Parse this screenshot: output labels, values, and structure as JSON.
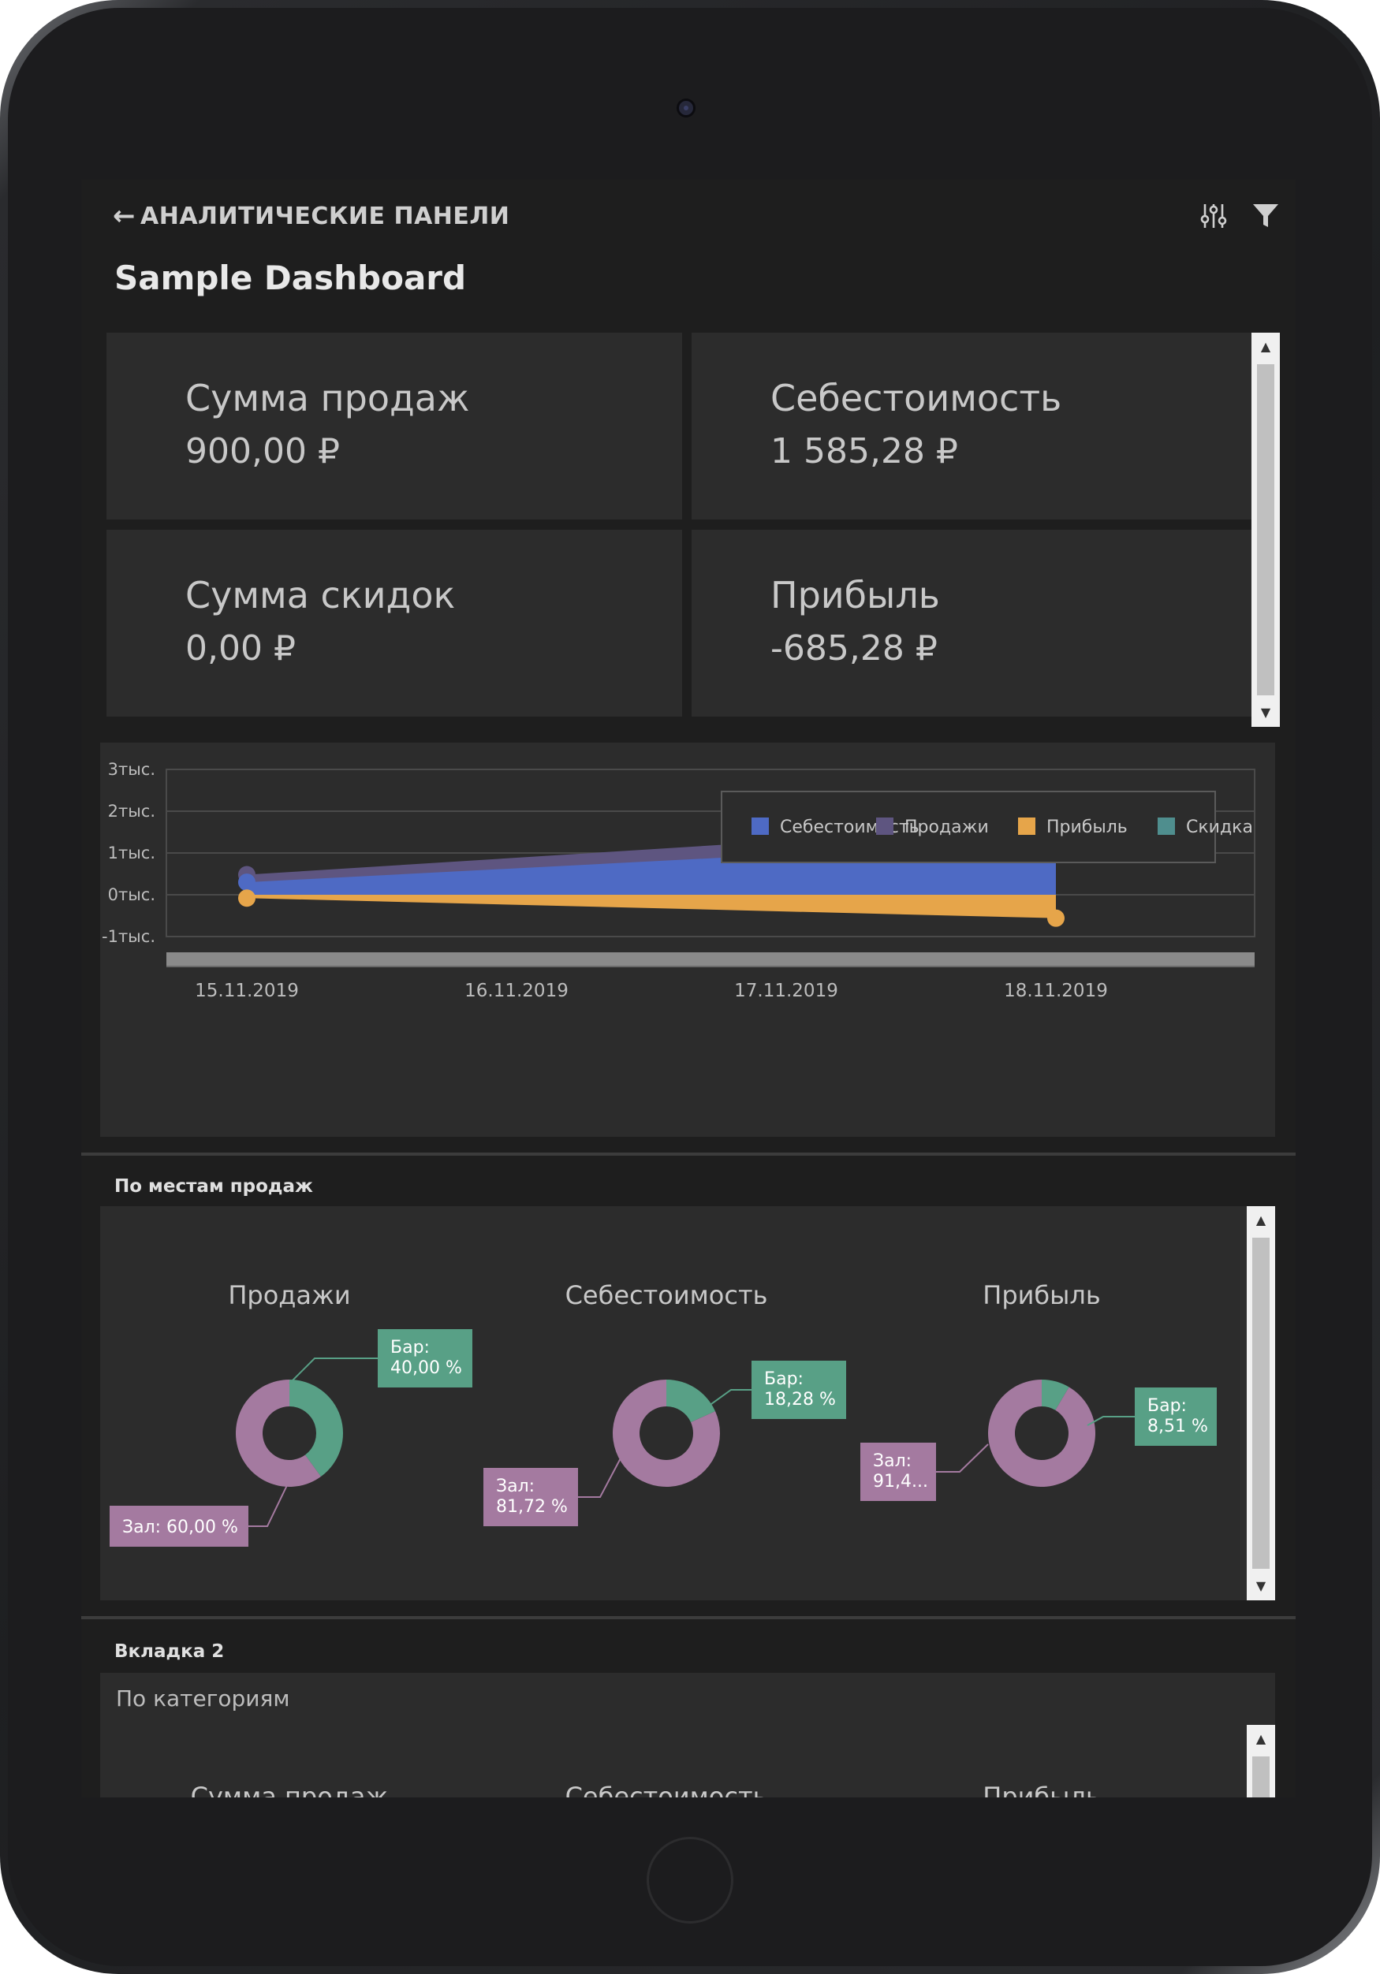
{
  "header": {
    "back_label": "АНАЛИТИЧЕСКИЕ ПАНЕЛИ",
    "title": "Sample Dashboard"
  },
  "icons": {
    "back": "arrow-left-icon",
    "settings": "sliders-icon",
    "filter": "filter-icon"
  },
  "kpis": [
    {
      "label": "Сумма продаж",
      "value": "900,00 ₽"
    },
    {
      "label": "Себестоимость",
      "value": "1 585,28 ₽"
    },
    {
      "label": "Сумма скидок",
      "value": "0,00 ₽"
    },
    {
      "label": "Прибыль",
      "value": "-685,28 ₽"
    }
  ],
  "chart_data": {
    "type": "area",
    "x": [
      "15.11.2019",
      "16.11.2019",
      "17.11.2019",
      "18.11.2019"
    ],
    "ytick_labels": [
      "3тыс.",
      "2тыс.",
      "1тыс.",
      "0тыс.",
      "-1тыс."
    ],
    "ylim": [
      -1000,
      3000
    ],
    "grid": true,
    "legend_position": "top-right",
    "series": [
      {
        "name": "Себестоимость",
        "color": "#4e6ac4",
        "points": [
          [
            "15.11.2019",
            300
          ],
          [
            "18.11.2019",
            1300
          ]
        ]
      },
      {
        "name": "Продажи",
        "color": "#5e5580",
        "points": [
          [
            "15.11.2019",
            480
          ],
          [
            "18.11.2019",
            1700
          ]
        ]
      },
      {
        "name": "Прибыль",
        "color": "#e6a54a",
        "points": [
          [
            "15.11.2019",
            -80
          ],
          [
            "18.11.2019",
            -560
          ]
        ]
      },
      {
        "name": "Скидка",
        "color": "#4f8e8e",
        "points": []
      }
    ]
  },
  "places": {
    "section_title": "По местам продаж",
    "charts": [
      {
        "title": "Продажи",
        "slices": [
          {
            "label": "Бар:",
            "value_text": "40,00 %",
            "value": 40.0,
            "color": "#58a086"
          },
          {
            "label": "Зал:",
            "value_text": "60,00 %",
            "value": 60.0,
            "color": "#a47aa0"
          }
        ]
      },
      {
        "title": "Себестоимость",
        "slices": [
          {
            "label": "Бар:",
            "value_text": "18,28 %",
            "value": 18.28,
            "color": "#58a086"
          },
          {
            "label": "Зал:",
            "value_text": "81,72 %",
            "value": 81.72,
            "color": "#a47aa0"
          }
        ]
      },
      {
        "title": "Прибыль",
        "slices": [
          {
            "label": "Бар:",
            "value_text": "8,51 %",
            "value": 8.51,
            "color": "#58a086"
          },
          {
            "label": "Зал:",
            "value_text": "91,4...",
            "value": 91.49,
            "color": "#a47aa0"
          }
        ]
      }
    ]
  },
  "tab2": {
    "section_title": "Вкладка 2",
    "subtitle": "По категориям",
    "chart_titles": [
      "Сумма продаж",
      "Себестоимость",
      "Прибыль"
    ]
  }
}
